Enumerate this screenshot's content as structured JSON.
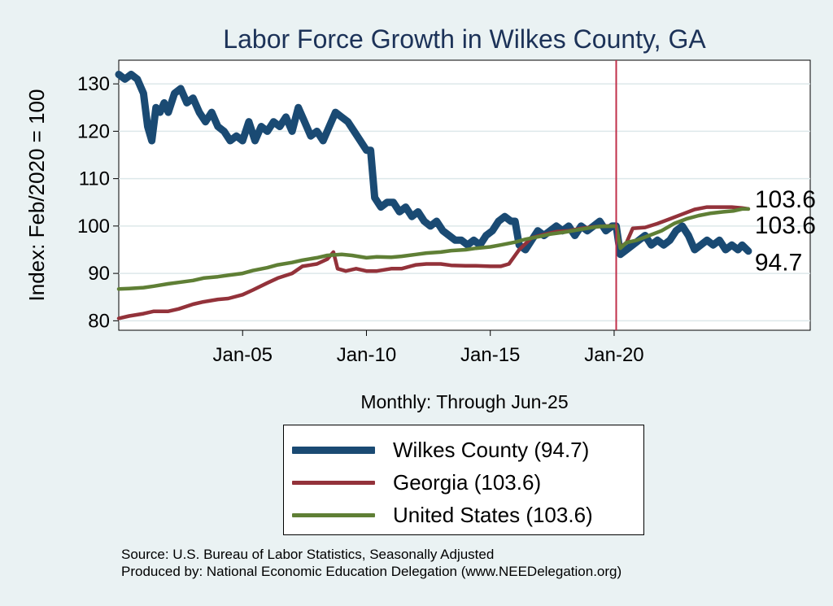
{
  "chart_data": {
    "type": "line",
    "title": "Labor Force Growth in Wilkes  County, GA",
    "xlabel": "Monthly: Through Jun-25",
    "ylabel": "Index: Feb/2020 = 100",
    "ylim": [
      78,
      135
    ],
    "xlim": [
      "2000-01",
      "2027-12"
    ],
    "y_ticks": [
      80,
      90,
      100,
      110,
      120,
      130
    ],
    "x_ticks": [
      {
        "label": "Jan-05",
        "date": "2005-01"
      },
      {
        "label": "Jan-10",
        "date": "2010-01"
      },
      {
        "label": "Jan-15",
        "date": "2015-01"
      },
      {
        "label": "Jan-20",
        "date": "2020-01"
      }
    ],
    "reference_line": {
      "date": "2020-02",
      "color": "#c0304a"
    },
    "grid": true,
    "legend_position": "bottom",
    "series": [
      {
        "name": "Wilkes  County (94.7)",
        "color": "#1a4a73",
        "end_label": "94.7",
        "points": [
          [
            "2000-01",
            132
          ],
          [
            "2000-04",
            131
          ],
          [
            "2000-07",
            132
          ],
          [
            "2000-10",
            131
          ],
          [
            "2001-01",
            128
          ],
          [
            "2001-03",
            121
          ],
          [
            "2001-05",
            118
          ],
          [
            "2001-07",
            125
          ],
          [
            "2001-09",
            124
          ],
          [
            "2001-11",
            126
          ],
          [
            "2002-01",
            124
          ],
          [
            "2002-04",
            128
          ],
          [
            "2002-07",
            129
          ],
          [
            "2002-10",
            126
          ],
          [
            "2003-01",
            127
          ],
          [
            "2003-04",
            124
          ],
          [
            "2003-07",
            122
          ],
          [
            "2003-10",
            124
          ],
          [
            "2004-01",
            121
          ],
          [
            "2004-04",
            120
          ],
          [
            "2004-07",
            118
          ],
          [
            "2004-10",
            119
          ],
          [
            "2005-01",
            118
          ],
          [
            "2005-04",
            122
          ],
          [
            "2005-07",
            118
          ],
          [
            "2005-10",
            121
          ],
          [
            "2006-01",
            120
          ],
          [
            "2006-04",
            122
          ],
          [
            "2006-07",
            121
          ],
          [
            "2006-10",
            123
          ],
          [
            "2007-01",
            120
          ],
          [
            "2007-04",
            125
          ],
          [
            "2007-07",
            122
          ],
          [
            "2007-10",
            119
          ],
          [
            "2008-01",
            120
          ],
          [
            "2008-04",
            118
          ],
          [
            "2008-07",
            121
          ],
          [
            "2008-10",
            124
          ],
          [
            "2009-01",
            123
          ],
          [
            "2009-04",
            122
          ],
          [
            "2009-07",
            120
          ],
          [
            "2009-10",
            118
          ],
          [
            "2010-01",
            116
          ],
          [
            "2010-03",
            116
          ],
          [
            "2010-05",
            106
          ],
          [
            "2010-08",
            104
          ],
          [
            "2010-11",
            105
          ],
          [
            "2011-02",
            105
          ],
          [
            "2011-05",
            103
          ],
          [
            "2011-08",
            104
          ],
          [
            "2011-11",
            102
          ],
          [
            "2012-02",
            103
          ],
          [
            "2012-05",
            101
          ],
          [
            "2012-08",
            100
          ],
          [
            "2012-11",
            101
          ],
          [
            "2013-02",
            99
          ],
          [
            "2013-05",
            98
          ],
          [
            "2013-08",
            97
          ],
          [
            "2013-11",
            97
          ],
          [
            "2014-02",
            96
          ],
          [
            "2014-05",
            97
          ],
          [
            "2014-08",
            96
          ],
          [
            "2014-11",
            98
          ],
          [
            "2015-02",
            99
          ],
          [
            "2015-05",
            101
          ],
          [
            "2015-08",
            102
          ],
          [
            "2015-11",
            101
          ],
          [
            "2016-01",
            101
          ],
          [
            "2016-03",
            96
          ],
          [
            "2016-06",
            95
          ],
          [
            "2016-09",
            97
          ],
          [
            "2016-12",
            99
          ],
          [
            "2017-03",
            98
          ],
          [
            "2017-06",
            99
          ],
          [
            "2017-09",
            100
          ],
          [
            "2017-12",
            99
          ],
          [
            "2018-03",
            100
          ],
          [
            "2018-06",
            98
          ],
          [
            "2018-09",
            100
          ],
          [
            "2018-12",
            99
          ],
          [
            "2019-03",
            100
          ],
          [
            "2019-06",
            101
          ],
          [
            "2019-09",
            99
          ],
          [
            "2019-12",
            100
          ],
          [
            "2020-02",
            100
          ],
          [
            "2020-04",
            94
          ],
          [
            "2020-07",
            95
          ],
          [
            "2020-10",
            96
          ],
          [
            "2021-01",
            97
          ],
          [
            "2021-04",
            98
          ],
          [
            "2021-07",
            96
          ],
          [
            "2021-10",
            97
          ],
          [
            "2022-01",
            96
          ],
          [
            "2022-04",
            97
          ],
          [
            "2022-07",
            99
          ],
          [
            "2022-10",
            100
          ],
          [
            "2023-01",
            98
          ],
          [
            "2023-04",
            95
          ],
          [
            "2023-07",
            96
          ],
          [
            "2023-10",
            97
          ],
          [
            "2024-01",
            96
          ],
          [
            "2024-04",
            97
          ],
          [
            "2024-07",
            95
          ],
          [
            "2024-10",
            96
          ],
          [
            "2025-01",
            95
          ],
          [
            "2025-03",
            96
          ],
          [
            "2025-06",
            94.7
          ]
        ]
      },
      {
        "name": "Georgia (103.6)",
        "color": "#93323a",
        "end_label": "103.6",
        "points": [
          [
            "2000-01",
            80.5
          ],
          [
            "2000-06",
            81
          ],
          [
            "2001-01",
            81.5
          ],
          [
            "2001-06",
            82
          ],
          [
            "2002-01",
            82
          ],
          [
            "2002-06",
            82.5
          ],
          [
            "2003-01",
            83.5
          ],
          [
            "2003-06",
            84
          ],
          [
            "2004-01",
            84.5
          ],
          [
            "2004-06",
            84.7
          ],
          [
            "2005-01",
            85.5
          ],
          [
            "2005-06",
            86.5
          ],
          [
            "2006-01",
            88
          ],
          [
            "2006-06",
            89
          ],
          [
            "2007-01",
            90
          ],
          [
            "2007-06",
            91.5
          ],
          [
            "2008-01",
            92
          ],
          [
            "2008-06",
            93
          ],
          [
            "2008-09",
            94.5
          ],
          [
            "2008-11",
            91
          ],
          [
            "2009-03",
            90.5
          ],
          [
            "2009-08",
            91
          ],
          [
            "2010-01",
            90.5
          ],
          [
            "2010-06",
            90.5
          ],
          [
            "2011-01",
            91
          ],
          [
            "2011-06",
            91
          ],
          [
            "2012-01",
            91.8
          ],
          [
            "2012-06",
            92
          ],
          [
            "2013-01",
            92
          ],
          [
            "2013-06",
            91.7
          ],
          [
            "2014-01",
            91.6
          ],
          [
            "2014-06",
            91.6
          ],
          [
            "2015-01",
            91.5
          ],
          [
            "2015-06",
            91.5
          ],
          [
            "2015-10",
            92
          ],
          [
            "2016-03",
            95
          ],
          [
            "2016-09",
            97.5
          ],
          [
            "2017-03",
            98.2
          ],
          [
            "2017-09",
            98.8
          ],
          [
            "2018-03",
            99
          ],
          [
            "2018-09",
            99.5
          ],
          [
            "2019-03",
            99.8
          ],
          [
            "2019-09",
            100
          ],
          [
            "2020-02",
            100
          ],
          [
            "2020-04",
            95.5
          ],
          [
            "2020-07",
            96.5
          ],
          [
            "2020-10",
            99.5
          ],
          [
            "2021-04",
            99.7
          ],
          [
            "2021-10",
            100.5
          ],
          [
            "2022-04",
            101.5
          ],
          [
            "2022-10",
            102.5
          ],
          [
            "2023-04",
            103.5
          ],
          [
            "2023-10",
            104
          ],
          [
            "2024-04",
            104
          ],
          [
            "2024-10",
            104
          ],
          [
            "2025-03",
            103.8
          ],
          [
            "2025-06",
            103.6
          ]
        ]
      },
      {
        "name": "United States (103.6)",
        "color": "#5f7f35",
        "end_label": "103.6",
        "points": [
          [
            "2000-01",
            86.7
          ],
          [
            "2000-06",
            86.8
          ],
          [
            "2001-01",
            87
          ],
          [
            "2001-06",
            87.3
          ],
          [
            "2002-01",
            87.8
          ],
          [
            "2002-06",
            88.1
          ],
          [
            "2003-01",
            88.5
          ],
          [
            "2003-06",
            89
          ],
          [
            "2004-01",
            89.3
          ],
          [
            "2004-06",
            89.6
          ],
          [
            "2005-01",
            90
          ],
          [
            "2005-06",
            90.6
          ],
          [
            "2006-01",
            91.2
          ],
          [
            "2006-06",
            91.8
          ],
          [
            "2007-01",
            92.3
          ],
          [
            "2007-06",
            92.8
          ],
          [
            "2008-01",
            93.3
          ],
          [
            "2008-06",
            93.8
          ],
          [
            "2009-01",
            94
          ],
          [
            "2009-06",
            93.8
          ],
          [
            "2010-01",
            93.3
          ],
          [
            "2010-06",
            93.5
          ],
          [
            "2011-01",
            93.4
          ],
          [
            "2011-06",
            93.6
          ],
          [
            "2012-01",
            94
          ],
          [
            "2012-06",
            94.3
          ],
          [
            "2013-01",
            94.5
          ],
          [
            "2013-06",
            94.8
          ],
          [
            "2014-01",
            95
          ],
          [
            "2014-06",
            95.3
          ],
          [
            "2015-01",
            95.6
          ],
          [
            "2015-06",
            96
          ],
          [
            "2016-01",
            96.6
          ],
          [
            "2016-06",
            97.2
          ],
          [
            "2017-01",
            97.8
          ],
          [
            "2017-06",
            98.3
          ],
          [
            "2018-01",
            98.7
          ],
          [
            "2018-06",
            99.1
          ],
          [
            "2019-01",
            99.6
          ],
          [
            "2019-06",
            99.9
          ],
          [
            "2020-02",
            100
          ],
          [
            "2020-04",
            95.3
          ],
          [
            "2020-07",
            96.5
          ],
          [
            "2020-12",
            97
          ],
          [
            "2021-06",
            98
          ],
          [
            "2021-12",
            99
          ],
          [
            "2022-06",
            100.5
          ],
          [
            "2022-12",
            101.5
          ],
          [
            "2023-06",
            102.2
          ],
          [
            "2023-12",
            102.7
          ],
          [
            "2024-06",
            103
          ],
          [
            "2024-11",
            103.2
          ],
          [
            "2025-03",
            103.6
          ],
          [
            "2025-06",
            103.6
          ]
        ]
      }
    ]
  },
  "legend": {
    "items": [
      {
        "label": "Wilkes  County (94.7)",
        "color": "#1a4a73"
      },
      {
        "label": "Georgia (103.6)",
        "color": "#93323a"
      },
      {
        "label": "United States (103.6)",
        "color": "#5f7f35"
      }
    ]
  },
  "footer": {
    "source": "Source: U.S. Bureau of Labor Statistics, Seasonally Adjusted",
    "produced_by": "Produced by: National Economic Education Delegation (www.NEEDelegation.org)"
  },
  "colors": {
    "page_background": "#eaf2f3",
    "plot_background": "#ffffff",
    "grid": "#dde8ea",
    "title": "#1c3258"
  }
}
